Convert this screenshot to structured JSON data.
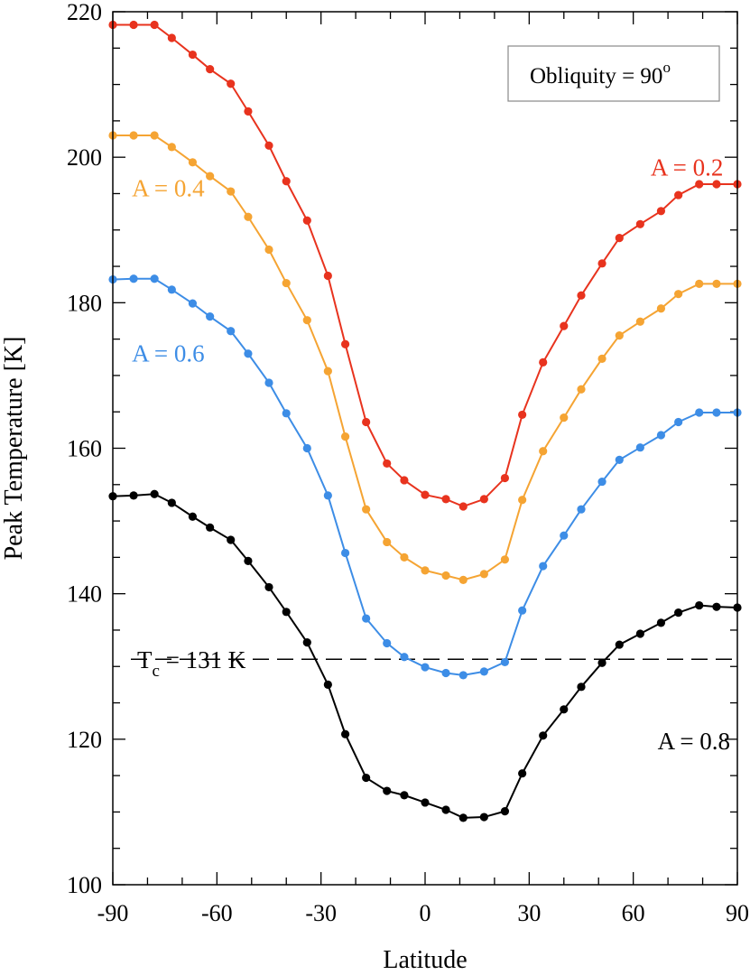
{
  "chart_data": {
    "type": "line",
    "xlabel": "Latitude",
    "ylabel": "Peak Temperature [K]",
    "xlim": [
      -90,
      90
    ],
    "ylim": [
      100,
      220
    ],
    "x_ticks": [
      -90,
      -60,
      -30,
      0,
      30,
      60,
      90
    ],
    "y_ticks": [
      100,
      120,
      140,
      160,
      180,
      200,
      220
    ],
    "x_tick_labels": [
      "-90",
      "-60",
      "-30",
      "0",
      "30",
      "60",
      "90"
    ],
    "y_tick_labels": [
      "100",
      "120",
      "140",
      "160",
      "180",
      "200",
      "220"
    ],
    "grid": false,
    "legend_box": {
      "text": "Obliquity = 90",
      "superscript": "o",
      "placement": "top-right"
    },
    "reference_line": {
      "y": 131,
      "style": "dashed",
      "label_main": "T",
      "label_sub": "c",
      "label_rest": " = 131 K"
    },
    "x": [
      -90,
      -84,
      -78,
      -73,
      -67,
      -62,
      -56,
      -51,
      -45,
      -40,
      -34,
      -28,
      -23,
      -17,
      -11,
      -6,
      0,
      6,
      11,
      17,
      23,
      28,
      34,
      40,
      45,
      51,
      56,
      62,
      68,
      73,
      79,
      84,
      90
    ],
    "series": [
      {
        "name": "A = 0.2",
        "color": "#e8331e",
        "values": [
          218.2,
          218.2,
          218.2,
          216.4,
          214.1,
          212.1,
          210.1,
          206.3,
          201.6,
          196.7,
          191.3,
          183.7,
          174.3,
          163.6,
          157.9,
          155.6,
          153.6,
          153.0,
          152.0,
          153.0,
          155.9,
          164.6,
          171.8,
          176.8,
          181.0,
          185.4,
          188.9,
          190.8,
          192.6,
          194.8,
          196.3,
          196.3,
          196.3
        ]
      },
      {
        "name": "A = 0.4",
        "color": "#f5a433",
        "values": [
          203.0,
          203.0,
          203.0,
          201.4,
          199.3,
          197.4,
          195.3,
          191.8,
          187.3,
          182.7,
          177.6,
          170.6,
          161.6,
          151.6,
          147.1,
          145.0,
          143.2,
          142.5,
          141.9,
          142.7,
          144.7,
          152.9,
          159.6,
          164.2,
          168.1,
          172.3,
          175.5,
          177.4,
          179.2,
          181.2,
          182.6,
          182.6,
          182.6
        ]
      },
      {
        "name": "A = 0.6",
        "color": "#3d8de6",
        "values": [
          183.2,
          183.3,
          183.3,
          181.8,
          179.9,
          178.1,
          176.1,
          173.0,
          169.0,
          164.8,
          160.0,
          153.5,
          145.6,
          136.6,
          133.2,
          131.3,
          129.9,
          129.1,
          128.8,
          129.3,
          130.6,
          137.7,
          143.8,
          148.0,
          151.6,
          155.4,
          158.4,
          160.1,
          161.8,
          163.6,
          164.9,
          164.9,
          164.9
        ]
      },
      {
        "name": "A = 0.8",
        "color": "#000000",
        "values": [
          153.4,
          153.5,
          153.7,
          152.5,
          150.6,
          149.1,
          147.4,
          144.5,
          140.9,
          137.5,
          133.3,
          127.5,
          120.7,
          114.7,
          112.9,
          112.3,
          111.3,
          110.3,
          109.2,
          109.3,
          110.1,
          115.3,
          120.5,
          124.1,
          127.2,
          130.5,
          133.0,
          134.5,
          136.0,
          137.4,
          138.4,
          138.2,
          138.1
        ]
      }
    ]
  }
}
